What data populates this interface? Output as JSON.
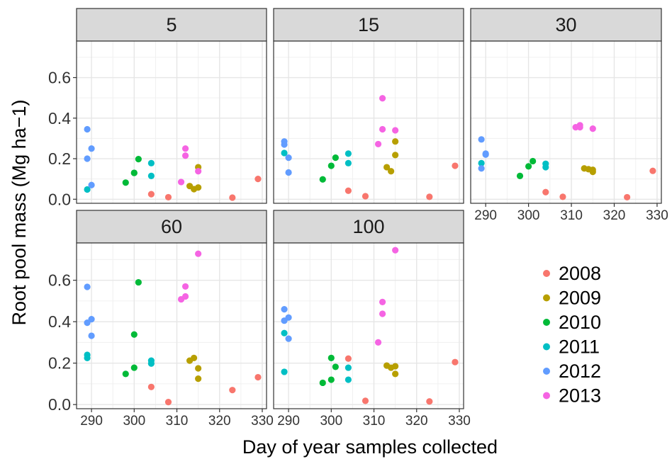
{
  "chart_data": {
    "type": "scatter",
    "xlabel": "Day of year samples collected",
    "ylabel": "Root pool mass (Mg ha−1)",
    "xlim": [
      286.5,
      331
    ],
    "ylim": [
      -0.02,
      0.78
    ],
    "xticks": [
      290,
      300,
      310,
      320,
      330
    ],
    "yticks": [
      0.0,
      0.2,
      0.4,
      0.6
    ],
    "ytick_labels": [
      "0.0",
      "0.2",
      "0.4",
      "0.6"
    ],
    "grid": true,
    "legend_position": "right",
    "colors": {
      "2008": "#F8766D",
      "2009": "#B79F00",
      "2010": "#00BA38",
      "2011": "#00BFC4",
      "2012": "#619CFF",
      "2013": "#F564E3"
    },
    "legend": [
      "2008",
      "2009",
      "2010",
      "2011",
      "2012",
      "2013"
    ],
    "facets": [
      {
        "label": "5",
        "series": [
          {
            "name": "2008",
            "points": [
              [
                304,
                0.025
              ],
              [
                308,
                0.01
              ],
              [
                323,
                0.008
              ],
              [
                329,
                0.1
              ]
            ]
          },
          {
            "name": "2009",
            "points": [
              [
                313,
                0.065
              ],
              [
                314,
                0.05
              ],
              [
                315,
                0.058
              ],
              [
                315,
                0.158
              ]
            ]
          },
          {
            "name": "2010",
            "points": [
              [
                298,
                0.082
              ],
              [
                300,
                0.13
              ],
              [
                300,
                0.13
              ],
              [
                301,
                0.198
              ]
            ]
          },
          {
            "name": "2011",
            "points": [
              [
                289,
                0.048
              ],
              [
                304,
                0.178
              ],
              [
                304,
                0.115
              ]
            ]
          },
          {
            "name": "2012",
            "points": [
              [
                289,
                0.345
              ],
              [
                289,
                0.2
              ],
              [
                290,
                0.25
              ],
              [
                290,
                0.07
              ]
            ]
          },
          {
            "name": "2013",
            "points": [
              [
                311,
                0.085
              ],
              [
                312,
                0.25
              ],
              [
                312,
                0.215
              ],
              [
                315,
                0.138
              ]
            ]
          }
        ]
      },
      {
        "label": "15",
        "series": [
          {
            "name": "2008",
            "points": [
              [
                304,
                0.042
              ],
              [
                308,
                0.015
              ],
              [
                323,
                0.012
              ],
              [
                329,
                0.165
              ]
            ]
          },
          {
            "name": "2009",
            "points": [
              [
                313,
                0.158
              ],
              [
                314,
                0.138
              ],
              [
                315,
                0.285
              ],
              [
                315,
                0.218
              ]
            ]
          },
          {
            "name": "2010",
            "points": [
              [
                298,
                0.098
              ],
              [
                300,
                0.165
              ],
              [
                301,
                0.205
              ]
            ]
          },
          {
            "name": "2011",
            "points": [
              [
                289,
                0.228
              ],
              [
                304,
                0.225
              ],
              [
                304,
                0.178
              ]
            ]
          },
          {
            "name": "2012",
            "points": [
              [
                289,
                0.285
              ],
              [
                289,
                0.27
              ],
              [
                290,
                0.205
              ],
              [
                290,
                0.132
              ]
            ]
          },
          {
            "name": "2013",
            "points": [
              [
                311,
                0.272
              ],
              [
                312,
                0.498
              ],
              [
                312,
                0.345
              ],
              [
                315,
                0.34
              ]
            ]
          }
        ]
      },
      {
        "label": "30",
        "series": [
          {
            "name": "2008",
            "points": [
              [
                304,
                0.035
              ],
              [
                308,
                0.012
              ],
              [
                323,
                0.01
              ],
              [
                329,
                0.14
              ]
            ]
          },
          {
            "name": "2009",
            "points": [
              [
                313,
                0.152
              ],
              [
                314,
                0.148
              ],
              [
                315,
                0.145
              ],
              [
                315,
                0.135
              ]
            ]
          },
          {
            "name": "2010",
            "points": [
              [
                298,
                0.115
              ],
              [
                300,
                0.162
              ],
              [
                301,
                0.188
              ]
            ]
          },
          {
            "name": "2011",
            "points": [
              [
                289,
                0.178
              ],
              [
                304,
                0.175
              ],
              [
                304,
                0.158
              ]
            ]
          },
          {
            "name": "2012",
            "points": [
              [
                289,
                0.295
              ],
              [
                289,
                0.152
              ],
              [
                290,
                0.225
              ],
              [
                290,
                0.22
              ]
            ]
          },
          {
            "name": "2013",
            "points": [
              [
                311,
                0.355
              ],
              [
                312,
                0.365
              ],
              [
                312,
                0.355
              ],
              [
                315,
                0.348
              ]
            ]
          }
        ]
      },
      {
        "label": "60",
        "series": [
          {
            "name": "2008",
            "points": [
              [
                304,
                0.085
              ],
              [
                308,
                0.012
              ],
              [
                323,
                0.07
              ],
              [
                329,
                0.132
              ]
            ]
          },
          {
            "name": "2009",
            "points": [
              [
                313,
                0.212
              ],
              [
                314,
                0.225
              ],
              [
                315,
                0.175
              ],
              [
                315,
                0.125
              ]
            ]
          },
          {
            "name": "2010",
            "points": [
              [
                298,
                0.148
              ],
              [
                300,
                0.338
              ],
              [
                300,
                0.178
              ],
              [
                301,
                0.59
              ]
            ]
          },
          {
            "name": "2011",
            "points": [
              [
                289,
                0.24
              ],
              [
                289,
                0.225
              ],
              [
                304,
                0.212
              ],
              [
                304,
                0.198
              ]
            ]
          },
          {
            "name": "2012",
            "points": [
              [
                289,
                0.568
              ],
              [
                289,
                0.395
              ],
              [
                290,
                0.412
              ],
              [
                290,
                0.332
              ]
            ]
          },
          {
            "name": "2013",
            "points": [
              [
                311,
                0.508
              ],
              [
                312,
                0.57
              ],
              [
                312,
                0.522
              ],
              [
                315,
                0.728
              ]
            ]
          }
        ]
      },
      {
        "label": "100",
        "series": [
          {
            "name": "2008",
            "points": [
              [
                304,
                0.222
              ],
              [
                308,
                0.018
              ],
              [
                323,
                0.015
              ],
              [
                329,
                0.205
              ]
            ]
          },
          {
            "name": "2009",
            "points": [
              [
                313,
                0.188
              ],
              [
                314,
                0.178
              ],
              [
                315,
                0.185
              ],
              [
                315,
                0.148
              ]
            ]
          },
          {
            "name": "2010",
            "points": [
              [
                298,
                0.105
              ],
              [
                300,
                0.225
              ],
              [
                300,
                0.12
              ],
              [
                301,
                0.182
              ]
            ]
          },
          {
            "name": "2011",
            "points": [
              [
                289,
                0.345
              ],
              [
                289,
                0.158
              ],
              [
                304,
                0.178
              ],
              [
                304,
                0.12
              ]
            ]
          },
          {
            "name": "2012",
            "points": [
              [
                289,
                0.46
              ],
              [
                289,
                0.405
              ],
              [
                290,
                0.42
              ],
              [
                290,
                0.318
              ]
            ]
          },
          {
            "name": "2013",
            "points": [
              [
                311,
                0.3
              ],
              [
                312,
                0.495
              ],
              [
                312,
                0.438
              ],
              [
                315,
                0.745
              ]
            ]
          }
        ]
      }
    ]
  }
}
